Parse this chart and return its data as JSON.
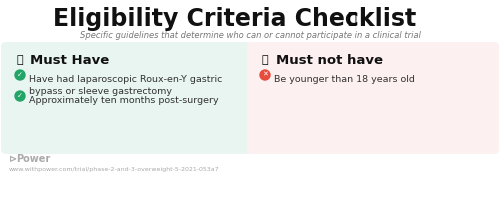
{
  "title": "Eligibility Criteria Checklist",
  "subtitle": "Specific guidelines that determine who can or cannot participate in a clinical trial",
  "bg_color": "#ffffff",
  "left_box_color": "#e8f5f0",
  "right_box_color": "#fdf0f0",
  "left_header": "Must Have",
  "right_header": "Must not have",
  "left_header_icon_color": "#e6a817",
  "right_header_icon_color": "#e6a817",
  "left_items": [
    "Have had laparoscopic Roux-en-Y gastric\nbypass or sleeve gastrectomy",
    "Approximately ten months post-surgery"
  ],
  "right_items": [
    "Be younger than 18 years old"
  ],
  "left_item_icon_color": "#22a566",
  "right_item_icon_color": "#e74c3c",
  "footer_text": "Ð Power",
  "footer_url": "www.withpower.com/trial/phase-2-and-3-overweight-5-2021-053a7",
  "footer_color": "#aaaaaa",
  "title_color": "#111111",
  "subtitle_color": "#777777",
  "item_color": "#333333",
  "header_color": "#111111"
}
